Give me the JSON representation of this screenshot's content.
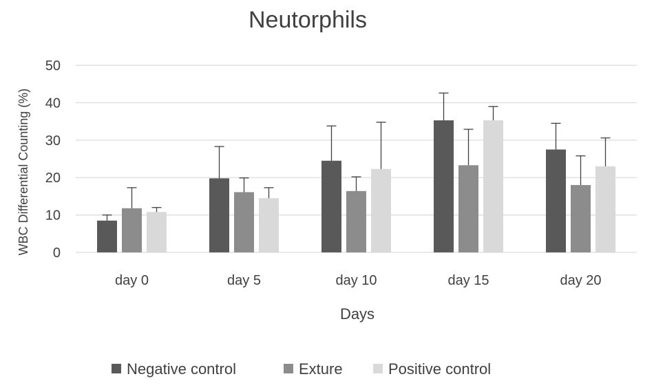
{
  "chart_data": {
    "type": "bar",
    "title": "Neutorphils",
    "xlabel": "Days",
    "ylabel": "WBC Differential Counting (%)",
    "ylim": [
      0,
      50
    ],
    "yticks": [
      0,
      10,
      20,
      30,
      40,
      50
    ],
    "grid": true,
    "legend_position": "bottom",
    "categories": [
      "day 0",
      "day 5",
      "day 10",
      "day 15",
      "day 20"
    ],
    "series": [
      {
        "name": "Negative control",
        "color": "#595959",
        "values": [
          8.5,
          19.8,
          24.5,
          35.3,
          27.5
        ],
        "errors": [
          1.5,
          8.5,
          9.3,
          7.3,
          7.0
        ]
      },
      {
        "name": "Exture",
        "color": "#8c8c8c",
        "values": [
          11.8,
          16.1,
          16.4,
          23.3,
          18.0
        ],
        "errors": [
          5.5,
          3.8,
          3.8,
          9.6,
          7.8
        ]
      },
      {
        "name": "Positive control",
        "color": "#d9d9d9",
        "values": [
          10.8,
          14.5,
          22.3,
          35.3,
          23.0
        ],
        "errors": [
          1.2,
          2.8,
          12.5,
          3.7,
          7.6
        ]
      }
    ]
  }
}
